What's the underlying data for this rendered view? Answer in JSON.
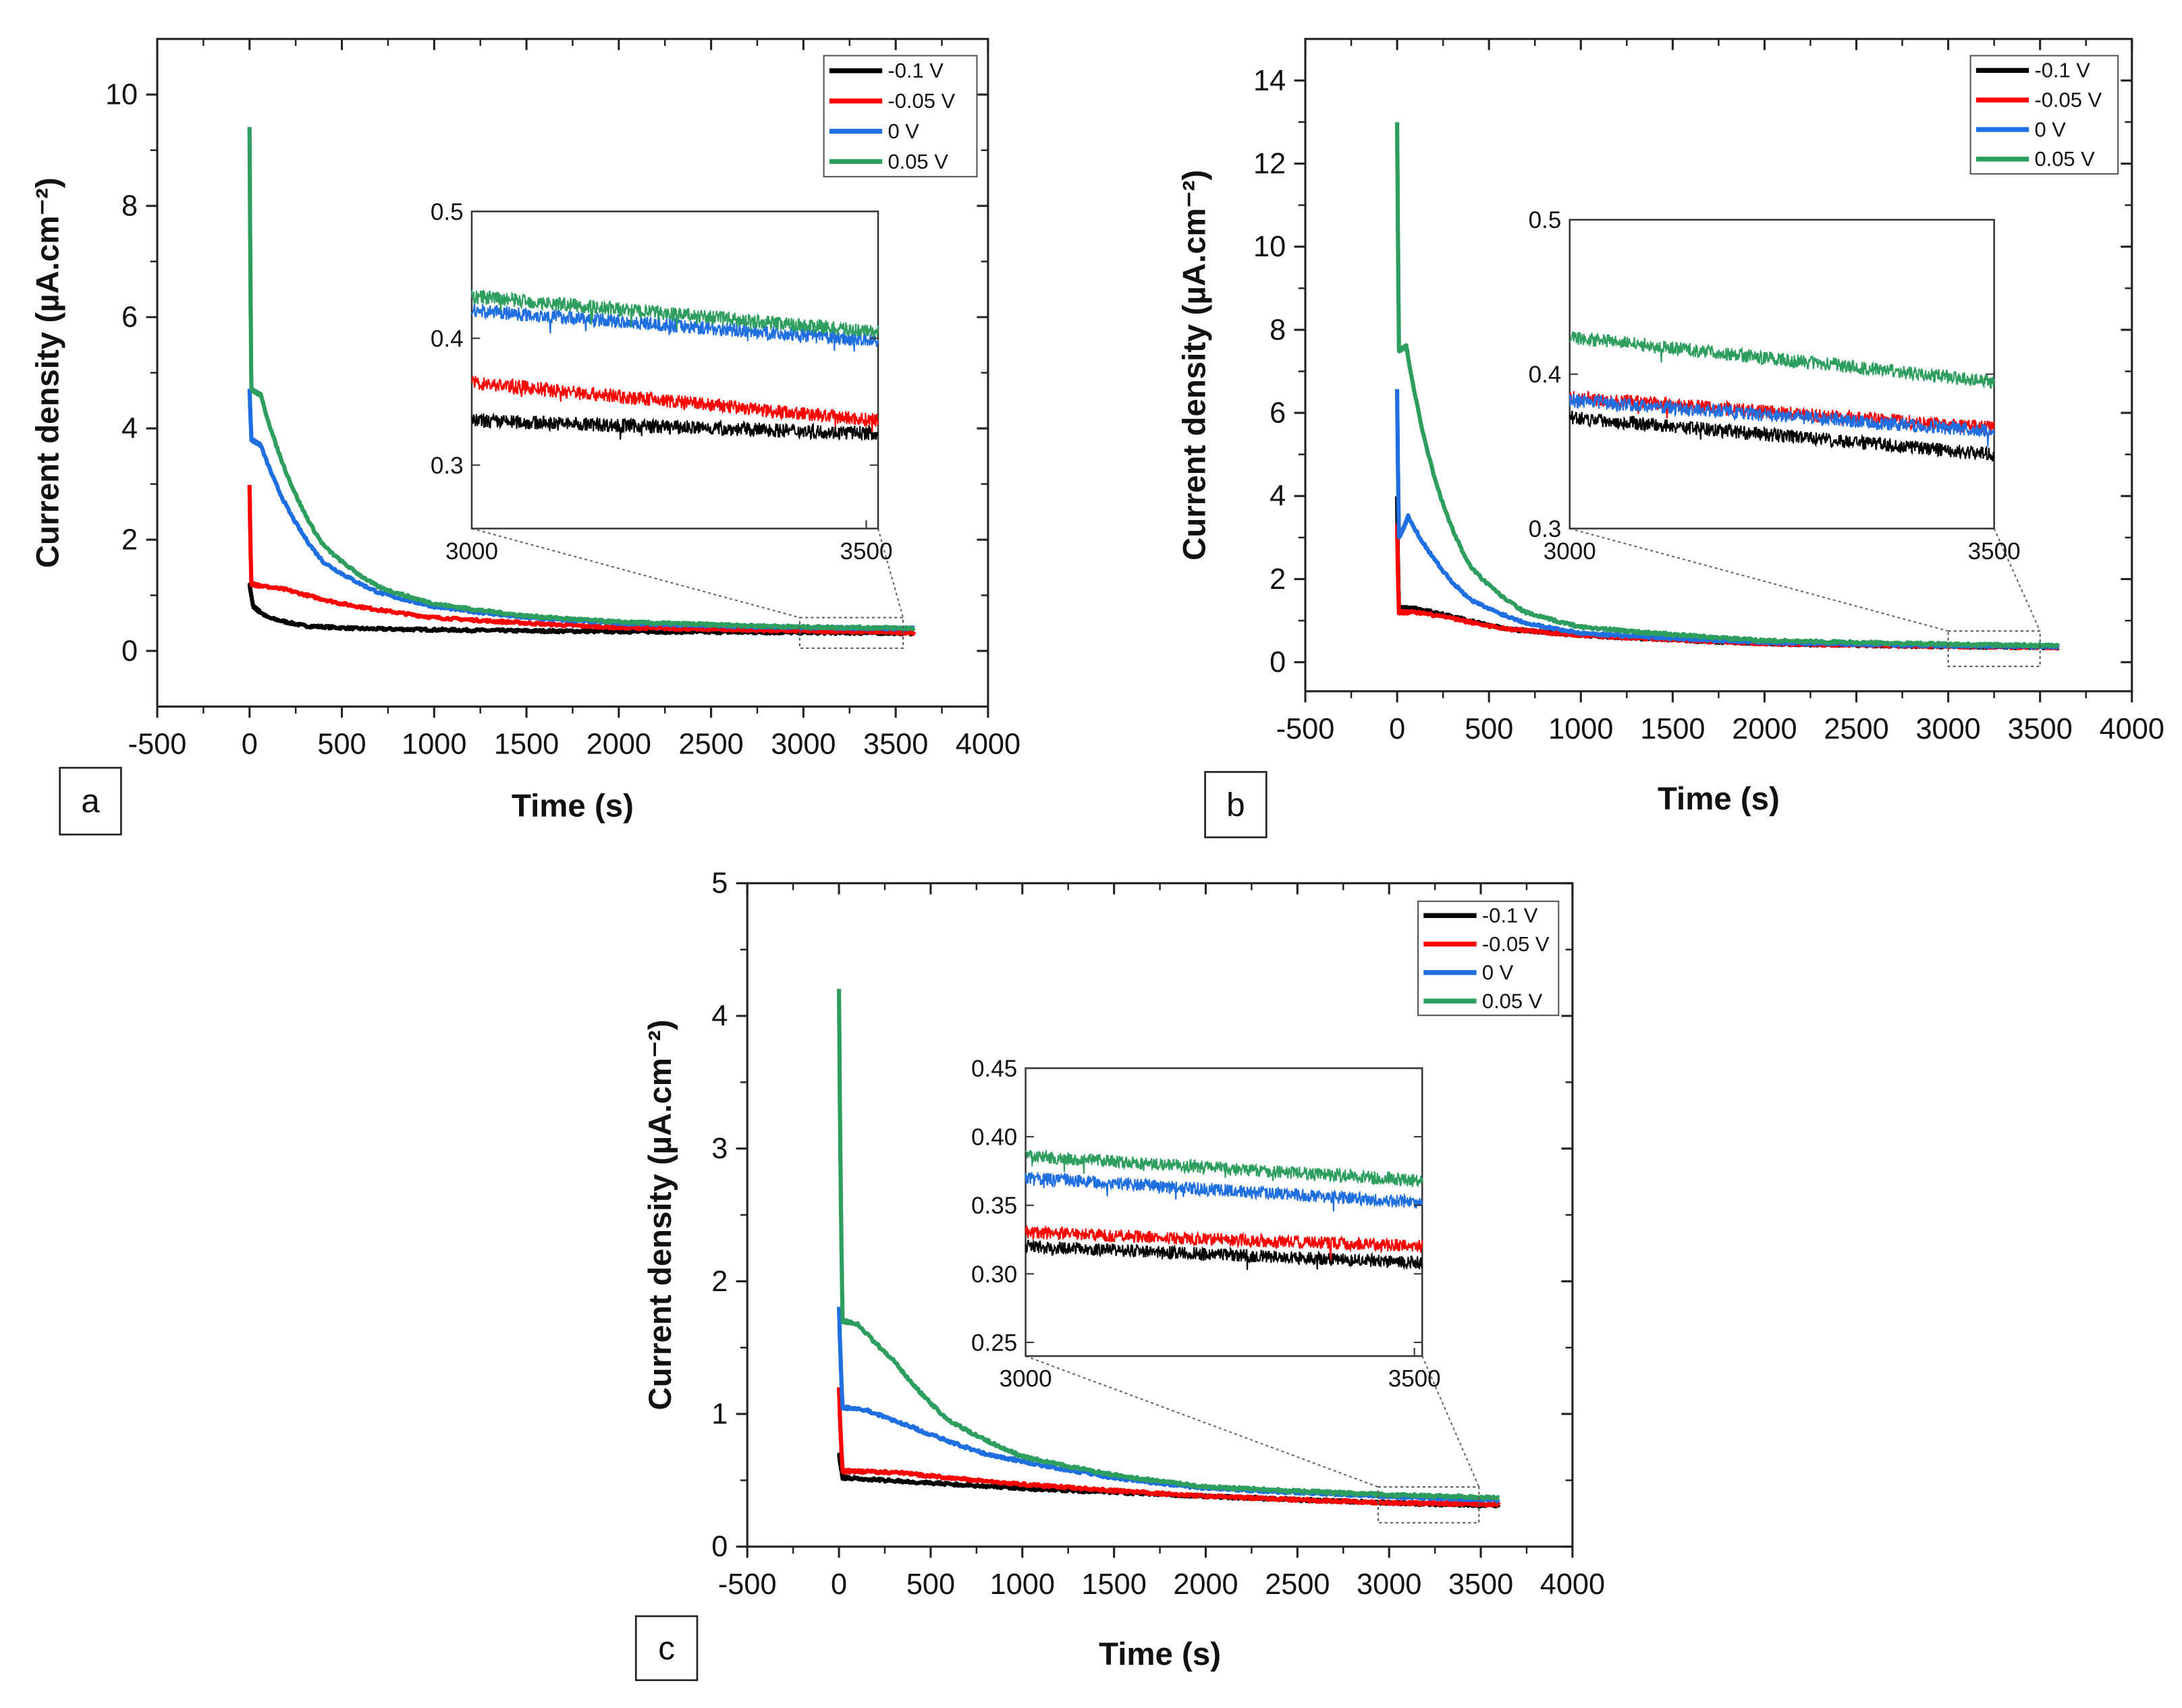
{
  "chart_data": [
    {
      "type": "line",
      "panel_label": "a",
      "xlabel": "Time (s)",
      "ylabel": "Current density (µA.cm⁻²)",
      "xlim": [
        -500,
        4000
      ],
      "ylim": [
        -1,
        11
      ],
      "xticks": [
        -500,
        0,
        500,
        1000,
        1500,
        2000,
        2500,
        3000,
        3500,
        4000
      ],
      "yticks": [
        0,
        2,
        4,
        6,
        8,
        10
      ],
      "legend": {
        "position": "top-right",
        "entries": [
          "-0.1 V",
          "-0.05 V",
          "0 V",
          "0.05 V"
        ]
      },
      "series": [
        {
          "name": "-0.1 V",
          "color": "#000000",
          "points": [
            [
              0,
              1.2
            ],
            [
              20,
              0.8
            ],
            [
              100,
              0.6
            ],
            [
              300,
              0.45
            ],
            [
              600,
              0.4
            ],
            [
              1500,
              0.36
            ],
            [
              3000,
              0.33
            ],
            [
              3600,
              0.32
            ]
          ]
        },
        {
          "name": "-0.05 V",
          "color": "#ff0000",
          "points": [
            [
              0,
              3.0
            ],
            [
              10,
              1.2
            ],
            [
              100,
              1.15
            ],
            [
              200,
              1.1
            ],
            [
              500,
              0.85
            ],
            [
              1000,
              0.6
            ],
            [
              1500,
              0.5
            ],
            [
              2000,
              0.42
            ],
            [
              3000,
              0.36
            ],
            [
              3600,
              0.33
            ]
          ]
        },
        {
          "name": "0 V",
          "color": "#1f6fe0",
          "points": [
            [
              0,
              4.7
            ],
            [
              10,
              3.8
            ],
            [
              60,
              3.7
            ],
            [
              200,
              2.6
            ],
            [
              400,
              1.6
            ],
            [
              700,
              1.05
            ],
            [
              1000,
              0.8
            ],
            [
              1500,
              0.6
            ],
            [
              2000,
              0.5
            ],
            [
              3000,
              0.42
            ],
            [
              3600,
              0.4
            ]
          ]
        },
        {
          "name": "0.05 V",
          "color": "#2e9e5e",
          "points": [
            [
              0,
              9.4
            ],
            [
              10,
              4.7
            ],
            [
              60,
              4.6
            ],
            [
              200,
              3.2
            ],
            [
              400,
              1.9
            ],
            [
              700,
              1.15
            ],
            [
              1000,
              0.85
            ],
            [
              1500,
              0.63
            ],
            [
              2000,
              0.52
            ],
            [
              3000,
              0.43
            ],
            [
              3600,
              0.41
            ]
          ]
        }
      ],
      "zoom_region": {
        "x": [
          2980,
          3540
        ],
        "y": [
          0.05,
          0.6
        ]
      },
      "inset": {
        "xlim": [
          3000,
          3515
        ],
        "ylim": [
          0.25,
          0.5
        ],
        "xticks": [
          3000,
          3500
        ],
        "yticks": [
          0.3,
          0.4,
          0.5
        ],
        "ytick_labels": [
          "0.3",
          "0.4",
          "0.5"
        ],
        "series": [
          {
            "name": "-0.1 V",
            "color": "#000000",
            "start": 0.335,
            "end": 0.325
          },
          {
            "name": "-0.05 V",
            "color": "#ff0000",
            "start": 0.365,
            "end": 0.335
          },
          {
            "name": "0 V",
            "color": "#1f6fe0",
            "start": 0.422,
            "end": 0.398
          },
          {
            "name": "0.05 V",
            "color": "#2e9e5e",
            "start": 0.433,
            "end": 0.405
          }
        ]
      }
    },
    {
      "type": "line",
      "panel_label": "b",
      "xlabel": "Time (s)",
      "ylabel": "Current density (µA.cm⁻²)",
      "xlim": [
        -500,
        4000
      ],
      "ylim": [
        -0.7,
        15
      ],
      "xticks": [
        -500,
        0,
        500,
        1000,
        1500,
        2000,
        2500,
        3000,
        3500,
        4000
      ],
      "yticks": [
        0,
        2,
        4,
        6,
        8,
        10,
        12,
        14
      ],
      "legend": {
        "position": "top-right",
        "entries": [
          "-0.1 V",
          "-0.05 V",
          "0 V",
          "0.05 V"
        ]
      },
      "series": [
        {
          "name": "-0.1 V",
          "color": "#000000",
          "points": [
            [
              0,
              4.0
            ],
            [
              10,
              1.3
            ],
            [
              100,
              1.3
            ],
            [
              300,
              1.1
            ],
            [
              600,
              0.8
            ],
            [
              1000,
              0.65
            ],
            [
              2000,
              0.45
            ],
            [
              3000,
              0.38
            ],
            [
              3600,
              0.36
            ]
          ]
        },
        {
          "name": "-0.05 V",
          "color": "#ff0000",
          "points": [
            [
              0,
              3.3
            ],
            [
              10,
              1.2
            ],
            [
              100,
              1.2
            ],
            [
              250,
              1.1
            ],
            [
              600,
              0.8
            ],
            [
              1000,
              0.65
            ],
            [
              2000,
              0.45
            ],
            [
              3000,
              0.38
            ],
            [
              3600,
              0.36
            ]
          ]
        },
        {
          "name": "0 V",
          "color": "#1f6fe0",
          "points": [
            [
              0,
              6.6
            ],
            [
              10,
              3.0
            ],
            [
              60,
              3.5
            ],
            [
              200,
              2.5
            ],
            [
              400,
              1.5
            ],
            [
              700,
              0.95
            ],
            [
              1000,
              0.7
            ],
            [
              2000,
              0.48
            ],
            [
              3000,
              0.4
            ],
            [
              3600,
              0.38
            ]
          ]
        },
        {
          "name": "0.05 V",
          "color": "#2e9e5e",
          "points": [
            [
              0,
              13
            ],
            [
              10,
              7.5
            ],
            [
              50,
              7.6
            ],
            [
              200,
              4.5
            ],
            [
              400,
              2.3
            ],
            [
              700,
              1.2
            ],
            [
              1000,
              0.85
            ],
            [
              2000,
              0.52
            ],
            [
              3000,
              0.43
            ],
            [
              3600,
              0.4
            ]
          ]
        }
      ],
      "zoom_region": {
        "x": [
          3000,
          3500
        ],
        "y": [
          -0.1,
          0.75
        ]
      },
      "inset": {
        "xlim": [
          3000,
          3500
        ],
        "ylim": [
          0.3,
          0.5
        ],
        "xticks": [
          3000,
          3500
        ],
        "yticks": [
          0.3,
          0.4,
          0.5
        ],
        "ytick_labels": [
          "0.3",
          "0.4",
          "0.5"
        ],
        "series": [
          {
            "name": "-0.1 V",
            "color": "#000000",
            "start": 0.372,
            "end": 0.348
          },
          {
            "name": "-0.05 V",
            "color": "#ff0000",
            "start": 0.385,
            "end": 0.365
          },
          {
            "name": "0 V",
            "color": "#1f6fe0",
            "start": 0.383,
            "end": 0.363
          },
          {
            "name": "0.05 V",
            "color": "#2e9e5e",
            "start": 0.424,
            "end": 0.395
          }
        ]
      }
    },
    {
      "type": "line",
      "panel_label": "c",
      "xlabel": "Time (s)",
      "ylabel": "Current density (µA.cm⁻²)",
      "xlim": [
        -500,
        4000
      ],
      "ylim": [
        0,
        5
      ],
      "xticks": [
        -500,
        0,
        500,
        1000,
        1500,
        2000,
        2500,
        3000,
        3500,
        4000
      ],
      "yticks": [
        0,
        1,
        2,
        3,
        4,
        5
      ],
      "legend": {
        "position": "top-right",
        "entries": [
          "-0.1 V",
          "-0.05 V",
          "0 V",
          "0.05 V"
        ]
      },
      "series": [
        {
          "name": "-0.1 V",
          "color": "#000000",
          "points": [
            [
              0,
              0.7
            ],
            [
              20,
              0.52
            ],
            [
              500,
              0.48
            ],
            [
              1000,
              0.44
            ],
            [
              2000,
              0.38
            ],
            [
              3000,
              0.33
            ],
            [
              3600,
              0.31
            ]
          ]
        },
        {
          "name": "-0.05 V",
          "color": "#ff0000",
          "points": [
            [
              0,
              1.2
            ],
            [
              20,
              0.57
            ],
            [
              300,
              0.56
            ],
            [
              1000,
              0.47
            ],
            [
              2000,
              0.38
            ],
            [
              3000,
              0.33
            ],
            [
              3600,
              0.32
            ]
          ]
        },
        {
          "name": "0 V",
          "color": "#1f6fe0",
          "points": [
            [
              0,
              1.8
            ],
            [
              20,
              1.05
            ],
            [
              150,
              1.03
            ],
            [
              400,
              0.9
            ],
            [
              800,
              0.7
            ],
            [
              1500,
              0.52
            ],
            [
              2000,
              0.44
            ],
            [
              3000,
              0.38
            ],
            [
              3600,
              0.35
            ]
          ]
        },
        {
          "name": "0.05 V",
          "color": "#2e9e5e",
          "points": [
            [
              0,
              4.2
            ],
            [
              20,
              1.7
            ],
            [
              100,
              1.68
            ],
            [
              300,
              1.4
            ],
            [
              600,
              0.95
            ],
            [
              1000,
              0.68
            ],
            [
              1500,
              0.54
            ],
            [
              2000,
              0.45
            ],
            [
              3000,
              0.39
            ],
            [
              3600,
              0.37
            ]
          ]
        }
      ],
      "zoom_region": {
        "x": [
          2940,
          3490
        ],
        "y": [
          0.18,
          0.45
        ]
      },
      "inset": {
        "xlim": [
          3000,
          3510
        ],
        "ylim": [
          0.24,
          0.45
        ],
        "xticks": [
          3000,
          3500
        ],
        "yticks": [
          0.25,
          0.3,
          0.35,
          0.4,
          0.45
        ],
        "ytick_labels": [
          "0.25",
          "0.30",
          "0.35",
          "0.40",
          "0.45"
        ],
        "series": [
          {
            "name": "-0.1 V",
            "color": "#000000",
            "start": 0.32,
            "end": 0.308
          },
          {
            "name": "-0.05 V",
            "color": "#ff0000",
            "start": 0.33,
            "end": 0.32
          },
          {
            "name": "0 V",
            "color": "#1f6fe0",
            "start": 0.37,
            "end": 0.352
          },
          {
            "name": "0.05 V",
            "color": "#2e9e5e",
            "start": 0.386,
            "end": 0.368
          }
        ]
      }
    }
  ]
}
